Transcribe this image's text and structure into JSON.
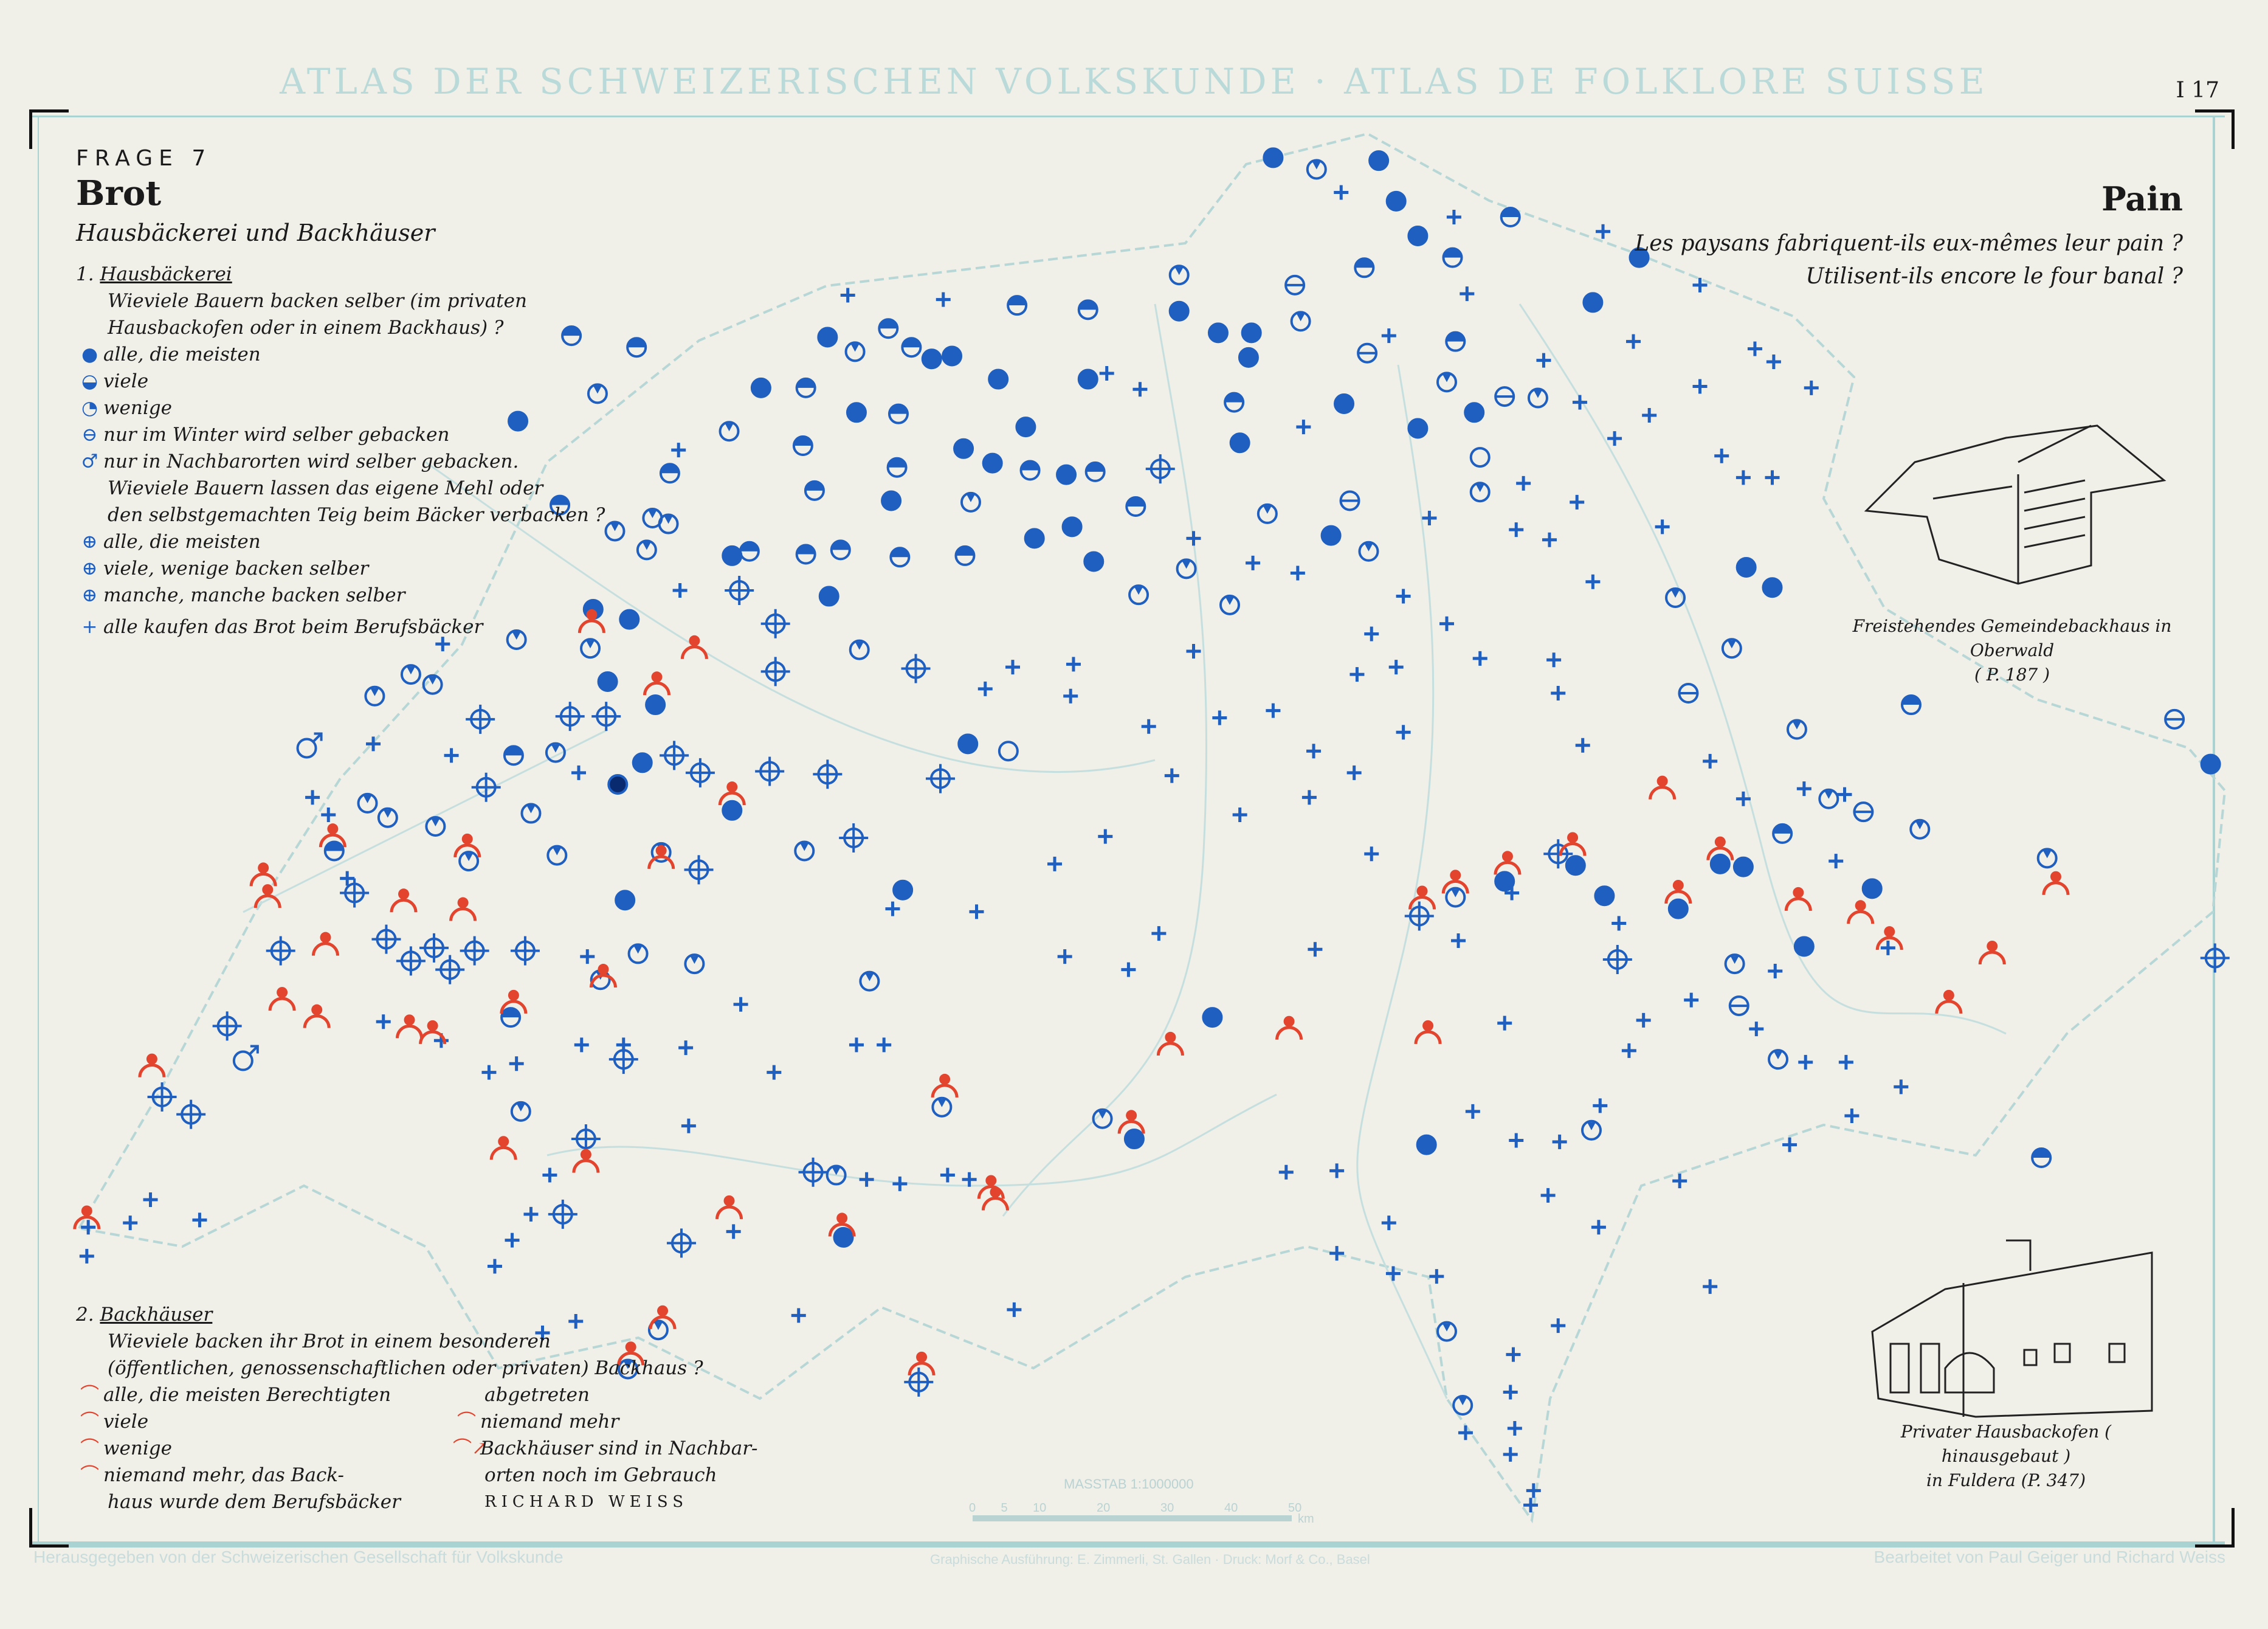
{
  "header": {
    "title": "ATLAS DER SCHWEIZERISCHEN VOLKSKUNDE · ATLAS DE FOLKLORE SUISSE",
    "sheet": "I 17"
  },
  "left": {
    "frage": "FRAGE 7",
    "title": "Brot",
    "subtitle": "Hausbäckerei und Backhäuser",
    "section1": {
      "number": "1.",
      "heading": "Hausbäckerei",
      "q1": [
        "Wieviele Bauern backen selber (im privaten",
        "Hausbackofen oder in einem Backhaus) ?"
      ],
      "items1": [
        {
          "icon": "full-circle",
          "label": "alle, die meisten"
        },
        {
          "icon": "half-circle",
          "label": "viele"
        },
        {
          "icon": "small-fill-circle",
          "label": "wenige"
        },
        {
          "icon": "minus-circle",
          "label": "nur im Winter wird selber gebacken"
        },
        {
          "icon": "arrow-circle",
          "label": "nur in Nachbarorten wird selber gebacken."
        }
      ],
      "q2": [
        "Wieviele Bauern lassen das eigene Mehl oder",
        "den selbstgemachten Teig beim Bäcker verbacken ?"
      ],
      "items2": [
        {
          "icon": "crosshair",
          "label": "alle, die meisten"
        },
        {
          "icon": "crosshair-half",
          "label": "viele, wenige backen selber"
        },
        {
          "icon": "crosshair-full",
          "label": "manche, manche backen selber"
        }
      ],
      "plus": {
        "icon": "plus",
        "label": "alle kaufen das Brot beim Berufsbäcker"
      }
    },
    "section2": {
      "number": "2.",
      "heading": "Backhäuser",
      "q": [
        "Wieviele backen ihr Brot in einem besonderen",
        "(öffentlichen, genossenschaftlichen oder privaten) Backhaus ?"
      ],
      "col1": [
        "alle, die meisten Berechtigten",
        "viele",
        "wenige",
        "niemand mehr, das Back-",
        "haus wurde dem Berufsbäcker"
      ],
      "col2": [
        "abgetreten",
        "niemand mehr",
        "Backhäuser sind in Nachbar-",
        "orten noch im Gebrauch"
      ],
      "author": "RICHARD WEISS"
    }
  },
  "right": {
    "title": "Pain",
    "q1": "Les paysans fabriquent-ils eux-mêmes leur pain ?",
    "q2": "Utilisent-ils encore le four banal ?",
    "caption1": [
      "Freistehendes Gemeindebackhaus in Oberwald",
      "( P. 187 )"
    ],
    "caption2": [
      "Privater Hausbackofen ( hinausgebaut )",
      "in Fuldera (P. 347)"
    ]
  },
  "scale": {
    "label": "MASSTAB 1:1000000",
    "ticks": [
      "0",
      "5",
      "10",
      "20",
      "30",
      "40",
      "50"
    ],
    "unit": "km"
  },
  "footer": {
    "left": "Herausgegeben von der Schweizerischen Gesellschaft für Volkskunde",
    "center": "Graphische Ausführung: E. Zimmerli, St. Gallen · Druck: Morf & Co., Basel",
    "right": "Bearbeitet von Paul Geiger und Richard Weiss"
  },
  "colors": {
    "blue": "#1f5fc0",
    "red": "#e2442e",
    "teal": "#a9d3d3",
    "paper": "#f0efe8"
  }
}
